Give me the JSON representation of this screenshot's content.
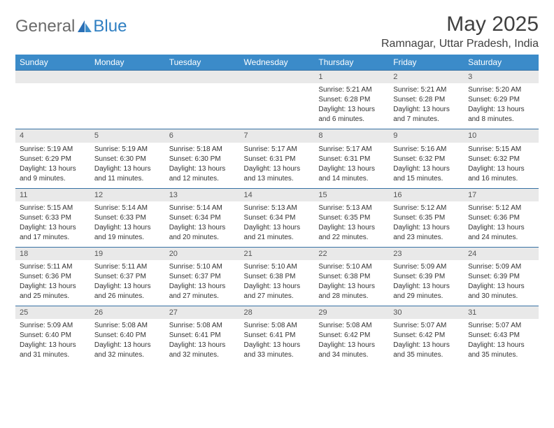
{
  "brand": {
    "part1": "General",
    "part2": "Blue"
  },
  "title": "May 2025",
  "location": "Ramnagar, Uttar Pradesh, India",
  "colors": {
    "header_bg": "#3b8bc9",
    "header_text": "#ffffff",
    "daynum_bg": "#e9e9e9",
    "border": "#3671a3",
    "text": "#333333",
    "title_text": "#404040"
  },
  "weekdays": [
    "Sunday",
    "Monday",
    "Tuesday",
    "Wednesday",
    "Thursday",
    "Friday",
    "Saturday"
  ],
  "weeks": [
    [
      null,
      null,
      null,
      null,
      {
        "d": "1",
        "sr": "Sunrise: 5:21 AM",
        "ss": "Sunset: 6:28 PM",
        "dl1": "Daylight: 13 hours",
        "dl2": "and 6 minutes."
      },
      {
        "d": "2",
        "sr": "Sunrise: 5:21 AM",
        "ss": "Sunset: 6:28 PM",
        "dl1": "Daylight: 13 hours",
        "dl2": "and 7 minutes."
      },
      {
        "d": "3",
        "sr": "Sunrise: 5:20 AM",
        "ss": "Sunset: 6:29 PM",
        "dl1": "Daylight: 13 hours",
        "dl2": "and 8 minutes."
      }
    ],
    [
      {
        "d": "4",
        "sr": "Sunrise: 5:19 AM",
        "ss": "Sunset: 6:29 PM",
        "dl1": "Daylight: 13 hours",
        "dl2": "and 9 minutes."
      },
      {
        "d": "5",
        "sr": "Sunrise: 5:19 AM",
        "ss": "Sunset: 6:30 PM",
        "dl1": "Daylight: 13 hours",
        "dl2": "and 11 minutes."
      },
      {
        "d": "6",
        "sr": "Sunrise: 5:18 AM",
        "ss": "Sunset: 6:30 PM",
        "dl1": "Daylight: 13 hours",
        "dl2": "and 12 minutes."
      },
      {
        "d": "7",
        "sr": "Sunrise: 5:17 AM",
        "ss": "Sunset: 6:31 PM",
        "dl1": "Daylight: 13 hours",
        "dl2": "and 13 minutes."
      },
      {
        "d": "8",
        "sr": "Sunrise: 5:17 AM",
        "ss": "Sunset: 6:31 PM",
        "dl1": "Daylight: 13 hours",
        "dl2": "and 14 minutes."
      },
      {
        "d": "9",
        "sr": "Sunrise: 5:16 AM",
        "ss": "Sunset: 6:32 PM",
        "dl1": "Daylight: 13 hours",
        "dl2": "and 15 minutes."
      },
      {
        "d": "10",
        "sr": "Sunrise: 5:15 AM",
        "ss": "Sunset: 6:32 PM",
        "dl1": "Daylight: 13 hours",
        "dl2": "and 16 minutes."
      }
    ],
    [
      {
        "d": "11",
        "sr": "Sunrise: 5:15 AM",
        "ss": "Sunset: 6:33 PM",
        "dl1": "Daylight: 13 hours",
        "dl2": "and 17 minutes."
      },
      {
        "d": "12",
        "sr": "Sunrise: 5:14 AM",
        "ss": "Sunset: 6:33 PM",
        "dl1": "Daylight: 13 hours",
        "dl2": "and 19 minutes."
      },
      {
        "d": "13",
        "sr": "Sunrise: 5:14 AM",
        "ss": "Sunset: 6:34 PM",
        "dl1": "Daylight: 13 hours",
        "dl2": "and 20 minutes."
      },
      {
        "d": "14",
        "sr": "Sunrise: 5:13 AM",
        "ss": "Sunset: 6:34 PM",
        "dl1": "Daylight: 13 hours",
        "dl2": "and 21 minutes."
      },
      {
        "d": "15",
        "sr": "Sunrise: 5:13 AM",
        "ss": "Sunset: 6:35 PM",
        "dl1": "Daylight: 13 hours",
        "dl2": "and 22 minutes."
      },
      {
        "d": "16",
        "sr": "Sunrise: 5:12 AM",
        "ss": "Sunset: 6:35 PM",
        "dl1": "Daylight: 13 hours",
        "dl2": "and 23 minutes."
      },
      {
        "d": "17",
        "sr": "Sunrise: 5:12 AM",
        "ss": "Sunset: 6:36 PM",
        "dl1": "Daylight: 13 hours",
        "dl2": "and 24 minutes."
      }
    ],
    [
      {
        "d": "18",
        "sr": "Sunrise: 5:11 AM",
        "ss": "Sunset: 6:36 PM",
        "dl1": "Daylight: 13 hours",
        "dl2": "and 25 minutes."
      },
      {
        "d": "19",
        "sr": "Sunrise: 5:11 AM",
        "ss": "Sunset: 6:37 PM",
        "dl1": "Daylight: 13 hours",
        "dl2": "and 26 minutes."
      },
      {
        "d": "20",
        "sr": "Sunrise: 5:10 AM",
        "ss": "Sunset: 6:37 PM",
        "dl1": "Daylight: 13 hours",
        "dl2": "and 27 minutes."
      },
      {
        "d": "21",
        "sr": "Sunrise: 5:10 AM",
        "ss": "Sunset: 6:38 PM",
        "dl1": "Daylight: 13 hours",
        "dl2": "and 27 minutes."
      },
      {
        "d": "22",
        "sr": "Sunrise: 5:10 AM",
        "ss": "Sunset: 6:38 PM",
        "dl1": "Daylight: 13 hours",
        "dl2": "and 28 minutes."
      },
      {
        "d": "23",
        "sr": "Sunrise: 5:09 AM",
        "ss": "Sunset: 6:39 PM",
        "dl1": "Daylight: 13 hours",
        "dl2": "and 29 minutes."
      },
      {
        "d": "24",
        "sr": "Sunrise: 5:09 AM",
        "ss": "Sunset: 6:39 PM",
        "dl1": "Daylight: 13 hours",
        "dl2": "and 30 minutes."
      }
    ],
    [
      {
        "d": "25",
        "sr": "Sunrise: 5:09 AM",
        "ss": "Sunset: 6:40 PM",
        "dl1": "Daylight: 13 hours",
        "dl2": "and 31 minutes."
      },
      {
        "d": "26",
        "sr": "Sunrise: 5:08 AM",
        "ss": "Sunset: 6:40 PM",
        "dl1": "Daylight: 13 hours",
        "dl2": "and 32 minutes."
      },
      {
        "d": "27",
        "sr": "Sunrise: 5:08 AM",
        "ss": "Sunset: 6:41 PM",
        "dl1": "Daylight: 13 hours",
        "dl2": "and 32 minutes."
      },
      {
        "d": "28",
        "sr": "Sunrise: 5:08 AM",
        "ss": "Sunset: 6:41 PM",
        "dl1": "Daylight: 13 hours",
        "dl2": "and 33 minutes."
      },
      {
        "d": "29",
        "sr": "Sunrise: 5:08 AM",
        "ss": "Sunset: 6:42 PM",
        "dl1": "Daylight: 13 hours",
        "dl2": "and 34 minutes."
      },
      {
        "d": "30",
        "sr": "Sunrise: 5:07 AM",
        "ss": "Sunset: 6:42 PM",
        "dl1": "Daylight: 13 hours",
        "dl2": "and 35 minutes."
      },
      {
        "d": "31",
        "sr": "Sunrise: 5:07 AM",
        "ss": "Sunset: 6:43 PM",
        "dl1": "Daylight: 13 hours",
        "dl2": "and 35 minutes."
      }
    ]
  ]
}
